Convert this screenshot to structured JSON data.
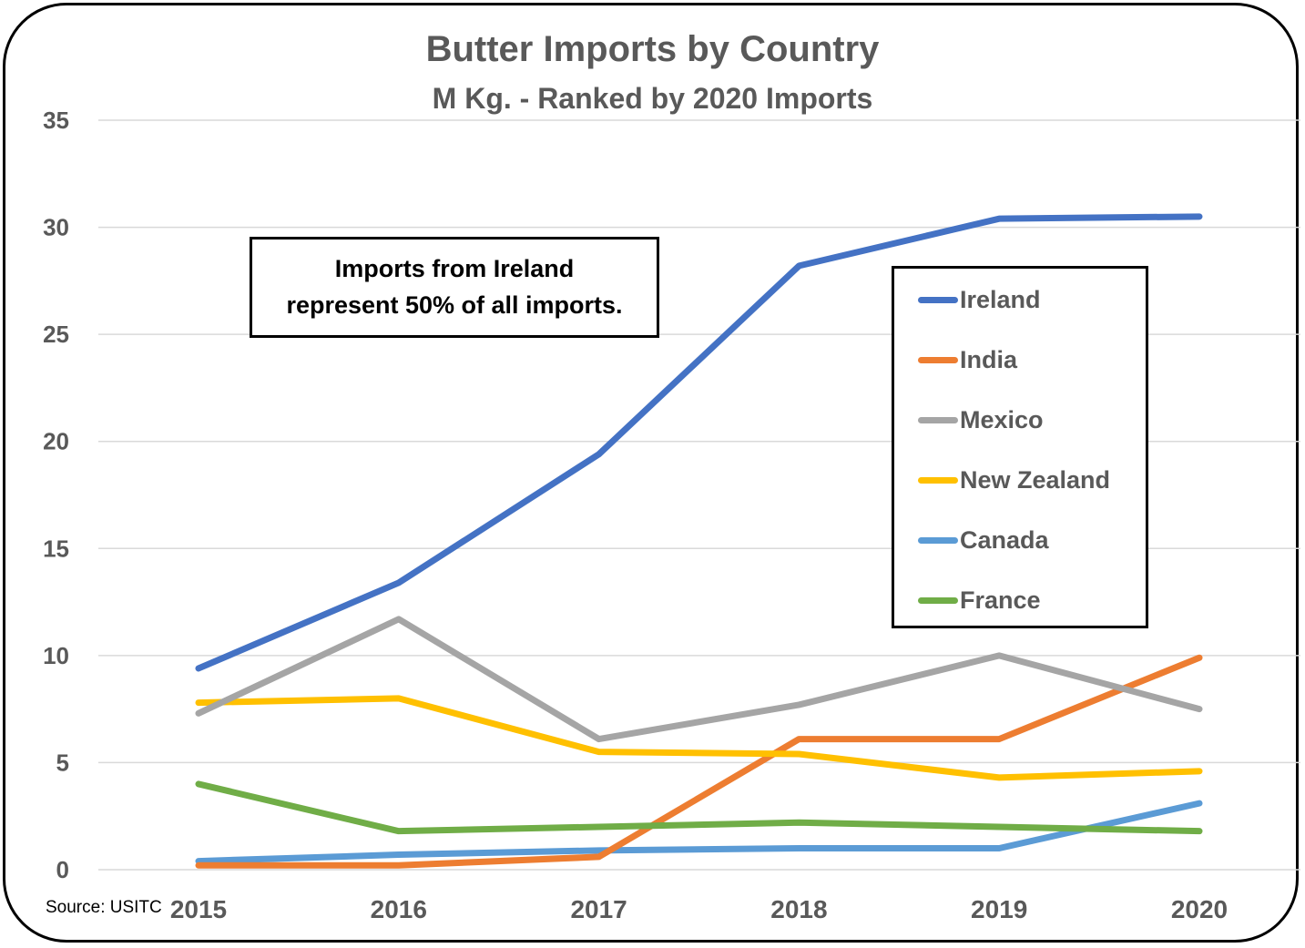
{
  "chart_data": {
    "type": "line",
    "title": "Butter Imports by Country",
    "subtitle": "M Kg. - Ranked by 2020 Imports",
    "xlabel": "",
    "ylabel": "",
    "x": [
      "2015",
      "2016",
      "2017",
      "2018",
      "2019",
      "2020"
    ],
    "ylim": [
      0,
      35
    ],
    "yticks": [
      "0",
      "5",
      "10",
      "15",
      "20",
      "25",
      "30",
      "35"
    ],
    "grid": true,
    "legend_position": "right-inside",
    "series": [
      {
        "name": "Ireland",
        "color": "#4472C4",
        "values": [
          9.4,
          13.4,
          19.4,
          28.2,
          30.4,
          30.5
        ]
      },
      {
        "name": "India",
        "color": "#ED7D31",
        "values": [
          0.2,
          0.2,
          0.6,
          6.1,
          6.1,
          9.9
        ]
      },
      {
        "name": "Mexico",
        "color": "#A5A5A5",
        "values": [
          7.3,
          11.7,
          6.1,
          7.7,
          10.0,
          7.5
        ]
      },
      {
        "name": "New Zealand",
        "color": "#FFC000",
        "values": [
          7.8,
          8.0,
          5.5,
          5.4,
          4.3,
          4.6
        ]
      },
      {
        "name": "Canada",
        "color": "#5B9BD5",
        "values": [
          0.4,
          0.7,
          0.9,
          1.0,
          1.0,
          3.1
        ]
      },
      {
        "name": "France",
        "color": "#70AD47",
        "values": [
          4.0,
          1.8,
          2.0,
          2.2,
          2.0,
          1.8
        ]
      }
    ],
    "annotations": [
      "Imports from Ireland represent 50% of all imports."
    ],
    "source": "Source: USITC"
  },
  "labels": {
    "title": "Butter Imports by Country",
    "subtitle": "M Kg. - Ranked by 2020 Imports",
    "annotation_line1": "Imports from Ireland",
    "annotation_line2": "represent 50% of all imports.",
    "source": "Source: USITC"
  }
}
